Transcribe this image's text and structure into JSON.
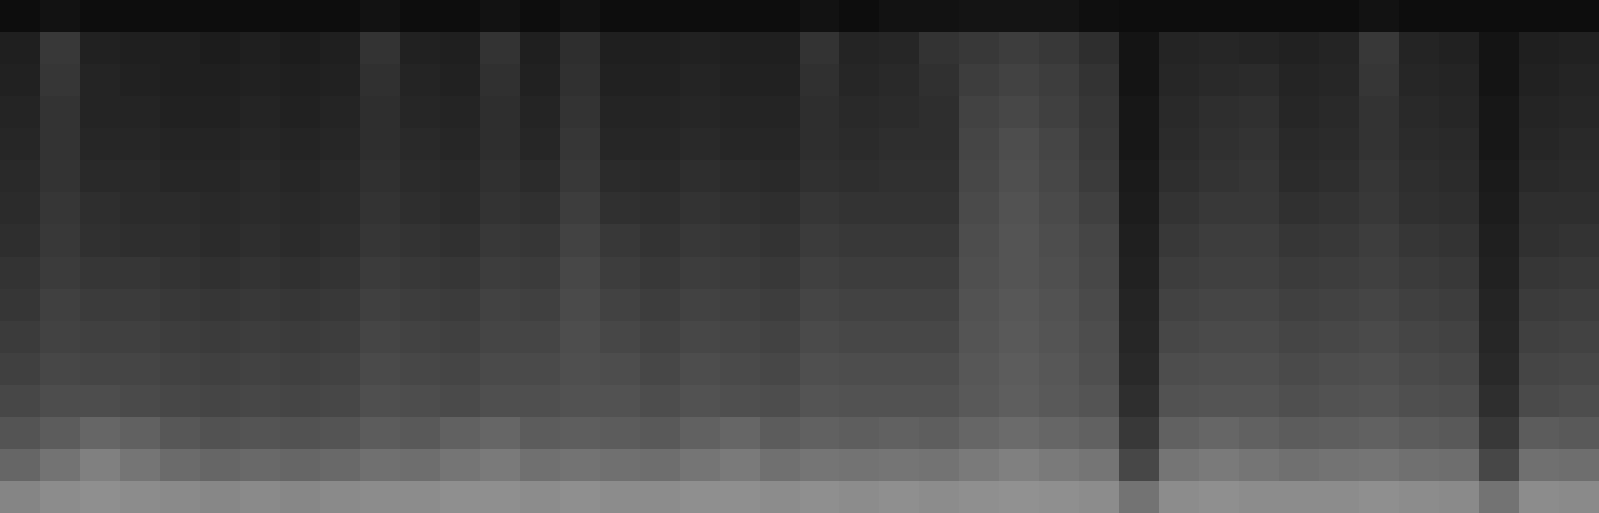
{
  "chart_data": {
    "type": "heatmap",
    "tick_labels": false,
    "zlim": [
      0,
      100
    ],
    "values": [
      [
        5,
        7,
        5,
        5,
        5,
        5,
        5,
        5,
        5,
        7,
        5,
        5,
        7,
        5,
        7,
        5,
        5,
        5,
        5,
        5,
        7,
        5,
        7,
        7,
        8,
        8,
        8,
        6,
        5,
        5,
        5,
        5,
        5,
        5,
        7,
        5,
        5,
        5,
        5,
        5
      ],
      [
        12,
        22,
        13,
        12,
        12,
        11,
        12,
        11,
        12,
        20,
        13,
        12,
        20,
        12,
        18,
        12,
        12,
        13,
        12,
        12,
        20,
        14,
        15,
        20,
        22,
        24,
        22,
        18,
        8,
        14,
        15,
        14,
        13,
        14,
        22,
        14,
        13,
        8,
        12,
        13
      ],
      [
        13,
        21,
        14,
        13,
        12,
        12,
        13,
        12,
        13,
        19,
        14,
        13,
        19,
        13,
        19,
        13,
        13,
        14,
        13,
        13,
        19,
        15,
        16,
        19,
        24,
        26,
        24,
        20,
        8,
        15,
        16,
        17,
        14,
        15,
        21,
        15,
        14,
        8,
        13,
        14
      ],
      [
        14,
        20,
        14,
        14,
        13,
        13,
        14,
        13,
        14,
        18,
        15,
        14,
        18,
        14,
        20,
        14,
        14,
        15,
        14,
        14,
        18,
        16,
        17,
        18,
        26,
        28,
        25,
        21,
        9,
        16,
        18,
        19,
        15,
        16,
        20,
        16,
        15,
        9,
        14,
        15
      ],
      [
        15,
        20,
        15,
        15,
        14,
        14,
        15,
        14,
        15,
        18,
        16,
        15,
        18,
        15,
        21,
        15,
        15,
        16,
        15,
        15,
        18,
        17,
        18,
        18,
        27,
        30,
        27,
        22,
        9,
        17,
        19,
        20,
        16,
        17,
        20,
        17,
        16,
        9,
        15,
        16
      ],
      [
        16,
        20,
        16,
        16,
        15,
        15,
        16,
        15,
        16,
        19,
        17,
        16,
        19,
        17,
        22,
        17,
        16,
        18,
        17,
        16,
        19,
        18,
        19,
        19,
        28,
        31,
        28,
        23,
        10,
        18,
        20,
        21,
        17,
        18,
        21,
        18,
        17,
        10,
        16,
        17
      ],
      [
        17,
        21,
        18,
        17,
        17,
        16,
        17,
        16,
        17,
        20,
        18,
        17,
        20,
        19,
        24,
        19,
        18,
        20,
        19,
        18,
        21,
        20,
        20,
        20,
        29,
        32,
        29,
        25,
        11,
        20,
        22,
        22,
        19,
        20,
        22,
        19,
        18,
        11,
        18,
        18
      ],
      [
        18,
        22,
        19,
        18,
        18,
        17,
        18,
        17,
        18,
        21,
        20,
        19,
        22,
        21,
        26,
        22,
        20,
        22,
        21,
        20,
        23,
        22,
        22,
        22,
        30,
        33,
        30,
        27,
        12,
        22,
        24,
        24,
        21,
        22,
        24,
        21,
        20,
        12,
        19,
        20
      ],
      [
        20,
        23,
        21,
        21,
        20,
        19,
        20,
        19,
        20,
        23,
        22,
        21,
        24,
        23,
        28,
        24,
        22,
        24,
        23,
        22,
        25,
        24,
        24,
        24,
        31,
        33,
        31,
        28,
        13,
        24,
        25,
        25,
        23,
        24,
        25,
        23,
        22,
        13,
        21,
        22
      ],
      [
        21,
        25,
        23,
        23,
        22,
        21,
        22,
        21,
        22,
        25,
        24,
        23,
        26,
        25,
        29,
        26,
        24,
        26,
        25,
        24,
        27,
        26,
        26,
        26,
        32,
        34,
        32,
        29,
        14,
        26,
        27,
        27,
        25,
        26,
        27,
        25,
        24,
        14,
        23,
        24
      ],
      [
        23,
        26,
        25,
        25,
        24,
        23,
        24,
        23,
        24,
        27,
        26,
        25,
        27,
        27,
        30,
        28,
        26,
        28,
        27,
        26,
        29,
        28,
        28,
        28,
        33,
        35,
        33,
        30,
        15,
        28,
        29,
        29,
        27,
        28,
        29,
        27,
        26,
        15,
        25,
        26
      ],
      [
        25,
        28,
        27,
        27,
        26,
        25,
        26,
        25,
        26,
        29,
        28,
        27,
        29,
        29,
        31,
        30,
        28,
        30,
        29,
        28,
        31,
        30,
        30,
        30,
        34,
        36,
        34,
        31,
        16,
        30,
        31,
        31,
        29,
        30,
        31,
        29,
        28,
        16,
        27,
        28
      ],
      [
        28,
        30,
        30,
        29,
        28,
        27,
        28,
        27,
        28,
        31,
        30,
        29,
        31,
        31,
        32,
        32,
        30,
        32,
        31,
        30,
        33,
        32,
        32,
        32,
        35,
        37,
        35,
        33,
        18,
        32,
        33,
        33,
        31,
        32,
        33,
        31,
        30,
        18,
        29,
        30
      ],
      [
        33,
        36,
        40,
        38,
        34,
        32,
        33,
        32,
        33,
        36,
        35,
        38,
        40,
        36,
        37,
        36,
        35,
        38,
        40,
        36,
        38,
        37,
        38,
        37,
        40,
        42,
        40,
        38,
        22,
        38,
        40,
        38,
        36,
        37,
        38,
        36,
        35,
        22,
        36,
        35
      ],
      [
        40,
        45,
        50,
        46,
        42,
        40,
        41,
        40,
        41,
        44,
        43,
        46,
        48,
        44,
        45,
        44,
        43,
        46,
        48,
        44,
        46,
        45,
        46,
        45,
        48,
        50,
        48,
        46,
        28,
        46,
        48,
        46,
        44,
        45,
        46,
        44,
        43,
        28,
        44,
        43
      ],
      [
        52,
        55,
        56,
        55,
        54,
        53,
        54,
        53,
        54,
        55,
        55,
        56,
        56,
        55,
        56,
        55,
        55,
        56,
        56,
        55,
        56,
        55,
        56,
        55,
        56,
        57,
        56,
        55,
        45,
        55,
        56,
        55,
        55,
        55,
        56,
        55,
        54,
        45,
        55,
        54
      ]
    ]
  }
}
